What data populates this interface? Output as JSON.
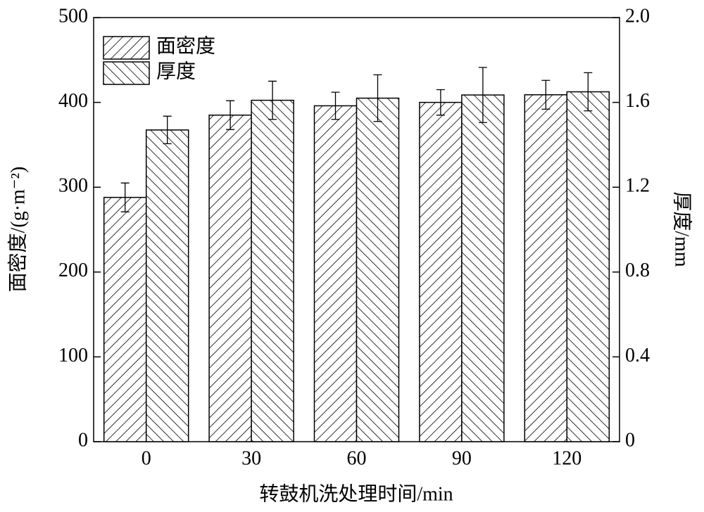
{
  "chart_data": {
    "type": "bar",
    "xlabel": "转鼓机洗处理时间/min",
    "ylabel": "面密度/(g·m⁻²)",
    "y2label": "厚度/mm",
    "categories": [
      "0",
      "30",
      "60",
      "90",
      "120"
    ],
    "series": [
      {
        "name": "面密度",
        "color": "#000000",
        "hatch": "/",
        "values": [
          288,
          385,
          396,
          400,
          409
        ],
        "errors": [
          17,
          17,
          16,
          15,
          17
        ]
      },
      {
        "name": "厚度",
        "color": "#000000",
        "hatch": "\\",
        "axis": "y2",
        "values": [
          1.47,
          1.61,
          1.62,
          1.635,
          1.65
        ],
        "errors": [
          0.065,
          0.09,
          0.11,
          0.13,
          0.09
        ]
      }
    ],
    "ylim": [
      0,
      500
    ],
    "yticks": [
      0,
      100,
      200,
      300,
      400,
      500
    ],
    "y2lim": [
      0,
      2
    ],
    "y2ticks": [
      0,
      0.4,
      0.8,
      1.2,
      1.6,
      {
        "value": 2,
        "label": "2.0"
      }
    ],
    "legend": "upper left"
  }
}
